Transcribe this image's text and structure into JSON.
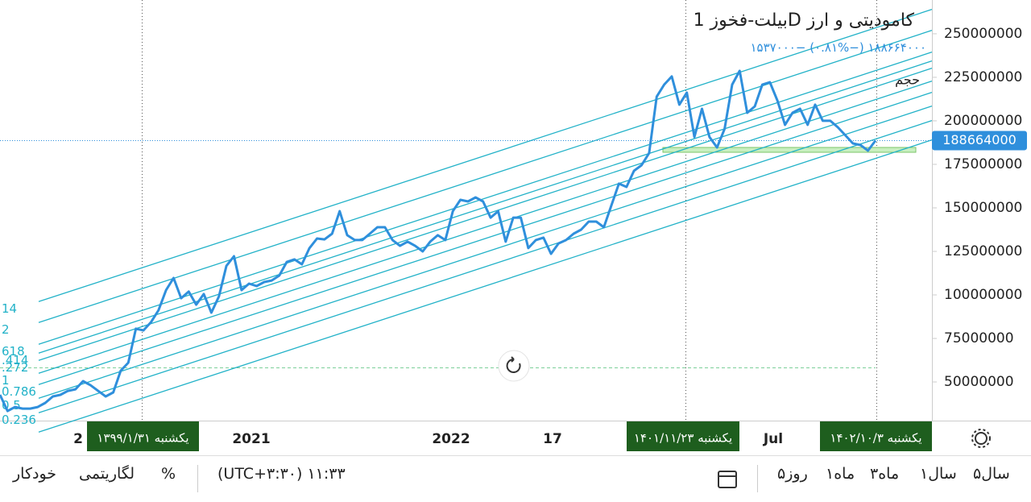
{
  "chart_data": {
    "type": "line",
    "title": "بیلت-فخوز 1D کامودیتی و ارز",
    "quote": {
      "last": "۱۸۸۶۶۴۰۰۰",
      "change_percent": "(−۰.۸۱%)",
      "change": "−۱۵۳۷۰۰۰"
    },
    "volume_label": "حجم",
    "series_color": "#2f8fdc",
    "values": [
      42600000,
      33300000,
      35600000,
      34700000,
      34700000,
      35600000,
      38000000,
      41700000,
      42600000,
      44900000,
      45800000,
      50500000,
      48100000,
      44900000,
      41700000,
      44000000,
      56500000,
      61100000,
      80600000,
      79600000,
      84300000,
      91200000,
      102800000,
      109700000,
      98100000,
      101900000,
      94400000,
      100500000,
      89800000,
      99100000,
      116700000,
      122200000,
      102800000,
      106500000,
      105100000,
      107400000,
      108300000,
      111100000,
      119000000,
      120400000,
      117600000,
      126900000,
      132400000,
      131900000,
      135200000,
      148100000,
      134300000,
      131500000,
      131500000,
      135200000,
      138900000,
      138900000,
      131500000,
      128200000,
      130600000,
      128200000,
      125000000,
      130600000,
      134300000,
      131500000,
      148100000,
      154600000,
      153700000,
      156000000,
      153700000,
      144400000,
      148100000,
      130600000,
      144400000,
      144400000,
      126900000,
      131500000,
      132900000,
      123600000,
      129600000,
      131500000,
      135200000,
      137500000,
      142100000,
      142100000,
      138900000,
      151400000,
      163900000,
      162000000,
      171300000,
      174500000,
      181500000,
      213900000,
      220800000,
      225500000,
      209300000,
      216200000,
      190700000,
      206900000,
      190700000,
      184700000,
      195400000,
      220800000,
      228700000,
      204600000,
      208300000,
      220800000,
      222200000,
      211600000,
      197700000,
      204600000,
      206900000,
      197700000,
      209300000,
      200000000,
      200000000,
      196300000,
      191700000,
      187000000,
      186100000,
      182900000,
      188664000
    ],
    "ylim": [
      27800000,
      269400000
    ],
    "yticks": [
      50000000,
      75000000,
      100000000,
      125000000,
      150000000,
      175000000,
      200000000,
      225000000,
      250000000
    ],
    "x_axis_labels": [
      "2",
      "2021",
      "2022",
      "17",
      "Jul"
    ],
    "crosshair_dates": [
      "یکشنبه ۱۳۹۹/۱/۳۱",
      "یکشنبه ۱۴۰۱/۱۱/۲۳",
      "یکشنبه ۱۴۰۲/۱۰/۳"
    ],
    "fib_channel": {
      "color": "#22b2c8",
      "levels": [
        "14",
        "2",
        "618",
        ".414",
        ".272",
        "1",
        "0.786",
        "0.5",
        "0.236"
      ]
    }
  },
  "toolbar": {
    "ranges": [
      "۵سال",
      "۱سال",
      "۳ماه",
      "۱ماه",
      "۵روز"
    ],
    "time": "(UTC+۳:۳۰) ۱۱:۳۳",
    "percent": "%",
    "log": "لگاریتمی",
    "auto": "خودکار"
  }
}
